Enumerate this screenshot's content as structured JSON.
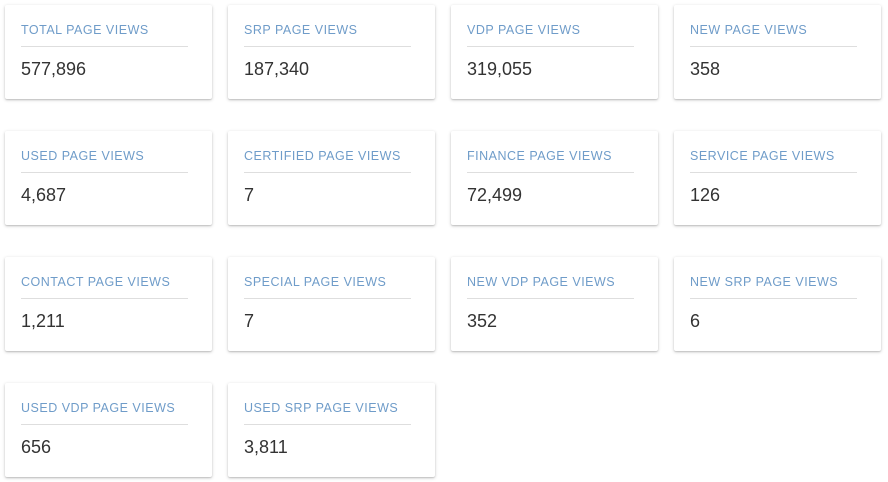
{
  "cards": [
    {
      "title": "TOTAL PAGE VIEWS",
      "value": "577,896"
    },
    {
      "title": "SRP PAGE VIEWS",
      "value": "187,340"
    },
    {
      "title": "VDP PAGE VIEWS",
      "value": "319,055"
    },
    {
      "title": "NEW PAGE VIEWS",
      "value": "358"
    },
    {
      "title": "USED PAGE VIEWS",
      "value": "4,687"
    },
    {
      "title": "CERTIFIED PAGE VIEWS",
      "value": "7"
    },
    {
      "title": "FINANCE PAGE VIEWS",
      "value": "72,499"
    },
    {
      "title": "SERVICE PAGE VIEWS",
      "value": "126"
    },
    {
      "title": "CONTACT PAGE VIEWS",
      "value": "1,211"
    },
    {
      "title": "SPECIAL PAGE VIEWS",
      "value": "7"
    },
    {
      "title": "NEW VDP PAGE VIEWS",
      "value": "352"
    },
    {
      "title": "NEW SRP PAGE VIEWS",
      "value": "6"
    },
    {
      "title": "USED VDP PAGE VIEWS",
      "value": "656"
    },
    {
      "title": "USED SRP PAGE VIEWS",
      "value": "3,811"
    }
  ]
}
